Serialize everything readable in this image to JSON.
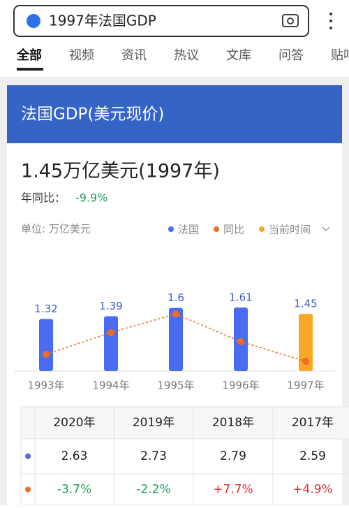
{
  "search": {
    "query": "1997年法国GDP",
    "tabs": [
      "全部",
      "视频",
      "资讯",
      "热议",
      "文库",
      "问答",
      "贴吧"
    ]
  },
  "card": {
    "title": "法国GDP(美元现价)",
    "value_text": "1.45万亿美元(1997年)",
    "yoy_label": "年同比：",
    "yoy_value": "-9.9%",
    "unit": "单位: 万亿美元"
  },
  "chart_data": {
    "type": "bar",
    "categories": [
      "1993年",
      "1994年",
      "1995年",
      "1996年",
      "1997年"
    ],
    "series": [
      {
        "name": "法国",
        "color": "#4a6cf0",
        "values": [
          1.32,
          1.39,
          1.6,
          1.61,
          1.45
        ],
        "colors": [
          "#4a6cf0",
          "#4a6cf0",
          "#4a6cf0",
          "#4a6cf0",
          "#f9a825"
        ]
      },
      {
        "name": "同比",
        "color": "#f26b21",
        "type": "line",
        "axis": "y2",
        "values": [
          -6.2,
          5.3,
          15.1,
          0.5,
          -9.9
        ]
      }
    ],
    "highlight": {
      "name": "当前时间",
      "color": "#f9a825"
    },
    "ylim": [
      0,
      1.7
    ],
    "y2lim": [
      -15,
      20
    ]
  },
  "table": {
    "headers": [
      "2020年",
      "2019年",
      "2018年",
      "2017年"
    ],
    "rows": [
      [
        "2.63",
        "2.73",
        "2.79",
        "2.59"
      ],
      [
        "-3.7%",
        "-2.2%",
        "+7.7%",
        "+4.9%"
      ]
    ]
  }
}
